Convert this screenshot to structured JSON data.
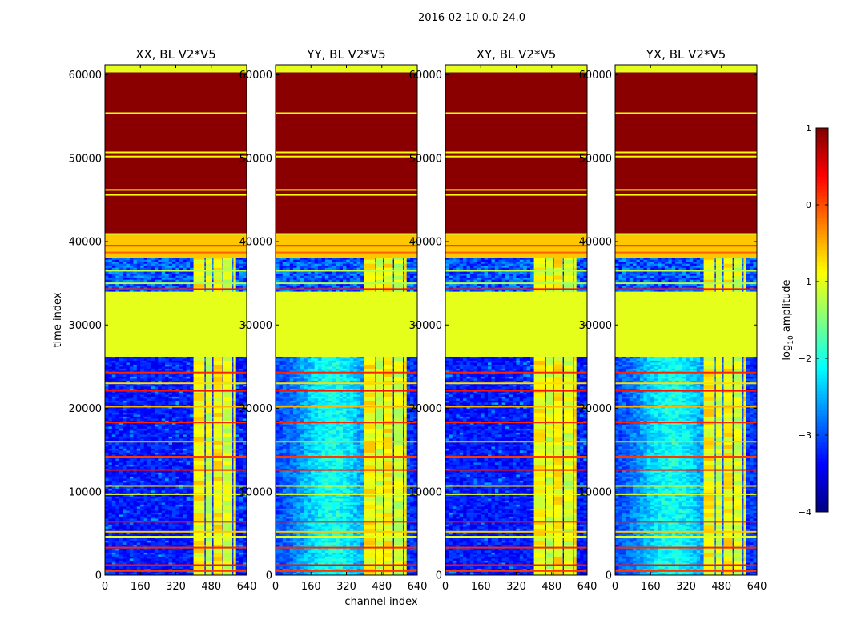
{
  "suptitle": "2016-02-10 0.0-24.0",
  "chart_data": {
    "type": "heatmap",
    "xlabel": "channel index",
    "ylabel": "time index",
    "x_range": [
      0,
      640
    ],
    "y_range": [
      0,
      61200
    ],
    "x_ticks": [
      0,
      160,
      320,
      480,
      640
    ],
    "y_ticks": [
      0,
      10000,
      20000,
      30000,
      40000,
      50000,
      60000
    ],
    "colorbar": {
      "label_main": "log",
      "label_sub": "10",
      "label_rest": " amplitude",
      "range": [
        -4,
        1
      ],
      "ticks": [
        -4,
        -3,
        -2,
        -1,
        0,
        1
      ],
      "tick_labels": [
        "−4",
        "−3",
        "−2",
        "−1",
        "0",
        "1"
      ],
      "colormap": "jet"
    },
    "panels": [
      {
        "title": "XX, BL V2*V5",
        "seed": 11,
        "quiet_background": true
      },
      {
        "title": "YY, BL V2*V5",
        "seed": 23,
        "quiet_background": false
      },
      {
        "title": "XY, BL V2*V5",
        "seed": 37,
        "quiet_background": true
      },
      {
        "title": "YX, BL V2*V5",
        "seed": 53,
        "quiet_background": false
      }
    ],
    "regions": [
      {
        "name": "flagged-saturated",
        "t_start": 41000,
        "t_end": 60300,
        "log_amp": 0.95
      },
      {
        "name": "flagged-constant",
        "t_start": 26200,
        "t_end": 34000,
        "log_amp": -1.0
      },
      {
        "name": "flagged-constant-top",
        "t_start": 60300,
        "t_end": 61200,
        "log_amp": -1.0
      },
      {
        "name": "transition",
        "t_start": 38000,
        "t_end": 41000,
        "log_amp": -0.6
      }
    ],
    "horizontal_lines": [
      {
        "t": 55400,
        "log_amp": -0.9
      },
      {
        "t": 50700,
        "log_amp": -0.9
      },
      {
        "t": 50200,
        "log_amp": -0.9
      },
      {
        "t": 46200,
        "log_amp": -0.9
      },
      {
        "t": 45600,
        "log_amp": -0.9
      },
      {
        "t": 40900,
        "log_amp": -1.1
      },
      {
        "t": 39500,
        "log_amp": 0.2
      },
      {
        "t": 38700,
        "log_amp": -0.1
      },
      {
        "t": 36500,
        "log_amp": -1.2
      },
      {
        "t": 35000,
        "log_amp": -1.3
      },
      {
        "t": 34300,
        "log_amp": 0.3
      },
      {
        "t": 24300,
        "log_amp": 0.2
      },
      {
        "t": 23000,
        "log_amp": -0.7
      },
      {
        "t": 22100,
        "log_amp": 0.3
      },
      {
        "t": 20200,
        "log_amp": -0.5
      },
      {
        "t": 18300,
        "log_amp": 0.2
      },
      {
        "t": 16000,
        "log_amp": -0.6
      },
      {
        "t": 14200,
        "log_amp": 0.1
      },
      {
        "t": 12600,
        "log_amp": 0.3
      },
      {
        "t": 10700,
        "log_amp": -0.8
      },
      {
        "t": 9700,
        "log_amp": -1.0
      },
      {
        "t": 6400,
        "log_amp": 0.3
      },
      {
        "t": 5200,
        "log_amp": -0.6
      },
      {
        "t": 4600,
        "log_amp": -1.0
      },
      {
        "t": 3300,
        "log_amp": 0.2
      },
      {
        "t": 1200,
        "log_amp": 0.3
      },
      {
        "t": 500,
        "log_amp": 0.1
      }
    ],
    "rfi_bands": [
      {
        "c_start": 400,
        "c_end": 450
      },
      {
        "c_start": 455,
        "c_end": 485
      },
      {
        "c_start": 490,
        "c_end": 530
      },
      {
        "c_start": 535,
        "c_end": 575
      },
      {
        "c_start": 580,
        "c_end": 592
      }
    ]
  }
}
